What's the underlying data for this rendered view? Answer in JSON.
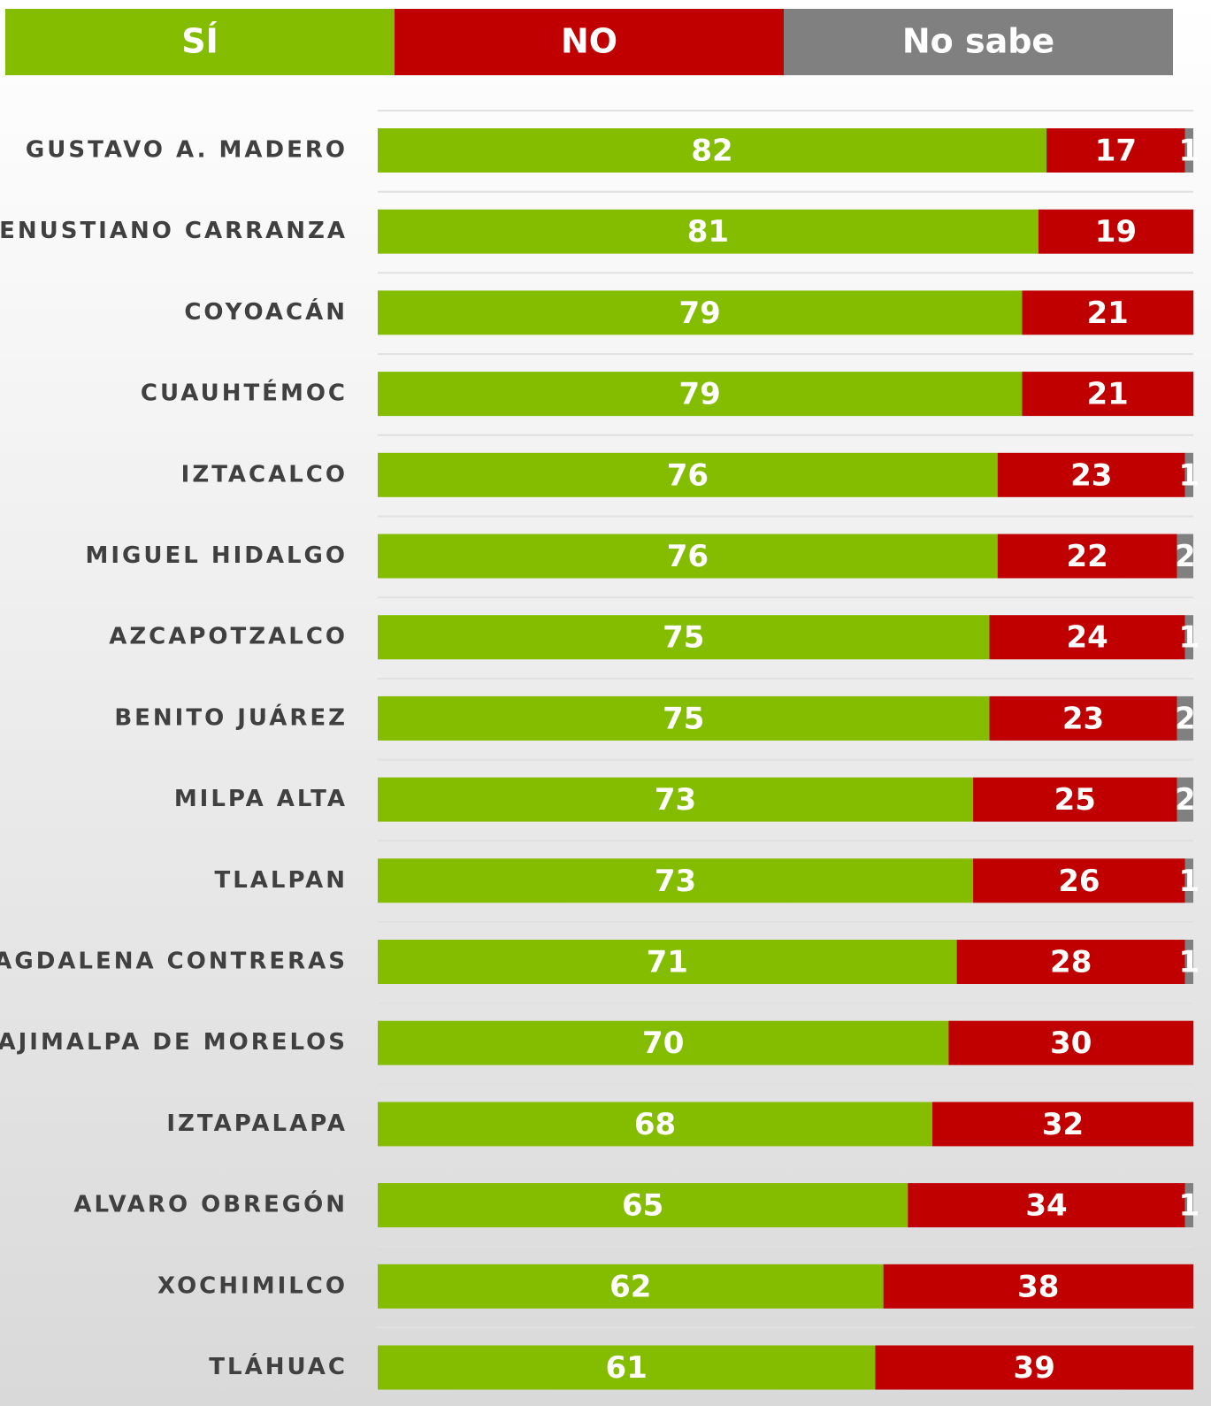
{
  "chart_data": {
    "type": "stacked-bar",
    "categories": [
      "GUSTAVO A. MADERO",
      "VENUSTIANO CARRANZA",
      "COYOACÁN",
      "CUAUHTÉMOC",
      "IZTACALCO",
      "MIGUEL HIDALGO",
      "AZCAPOTZALCO",
      "BENITO JUÁREZ",
      "MILPA ALTA",
      "TLALPAN",
      "MAGDALENA CONTRERAS",
      "CUAJIMALPA DE MORELOS",
      "IZTAPALAPA",
      "ALVARO OBREGÓN",
      "XOCHIMILCO",
      "TLÁHUAC"
    ],
    "series": [
      {
        "name": "SÍ",
        "color": "#84bd00",
        "values": [
          82,
          81,
          79,
          79,
          76,
          76,
          75,
          75,
          73,
          73,
          71,
          70,
          68,
          65,
          62,
          61
        ]
      },
      {
        "name": "NO",
        "color": "#c00000",
        "values": [
          17,
          19,
          21,
          21,
          23,
          22,
          24,
          23,
          25,
          26,
          28,
          30,
          32,
          34,
          38,
          39
        ]
      },
      {
        "name": "No sabe",
        "color": "#808080",
        "values": [
          1,
          0,
          0,
          0,
          1,
          2,
          1,
          2,
          2,
          1,
          1,
          0,
          0,
          1,
          0,
          0
        ]
      }
    ],
    "xlim": [
      0,
      100
    ]
  }
}
